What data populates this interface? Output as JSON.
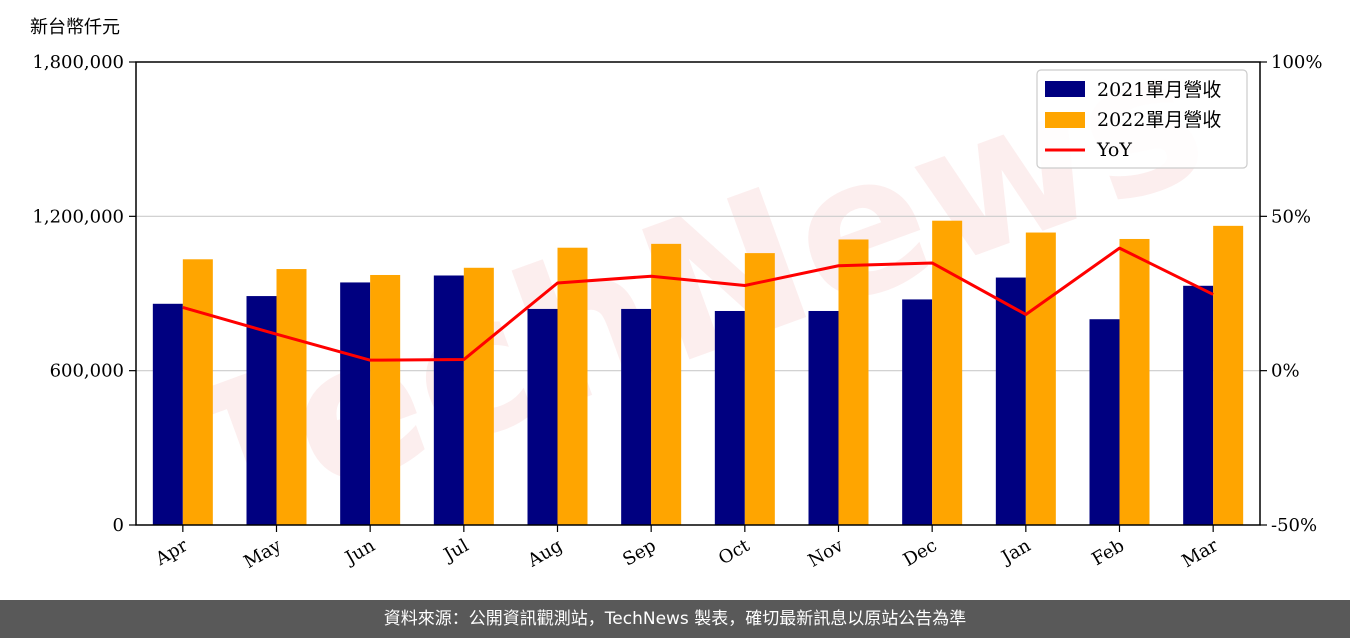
{
  "unit_label": "新台幣仟元",
  "watermark": "TechNews",
  "footer": "資料來源：公開資訊觀測站，TechNews 製表，確切最新訊息以原站公告為準",
  "colors": {
    "2021": "#000080",
    "2022": "#ffa500",
    "yoy": "#ff0000"
  },
  "chart_data": {
    "type": "bar",
    "categories": [
      "Apr",
      "May",
      "Jun",
      "Jul",
      "Aug",
      "Sep",
      "Oct",
      "Nov",
      "Dec",
      "Jan",
      "Feb",
      "Mar"
    ],
    "series": [
      {
        "name": "2021單月營收",
        "type": "bar",
        "axis": "left",
        "values": [
          860000,
          890000,
          943000,
          970000,
          840000,
          840000,
          832000,
          832000,
          877000,
          962000,
          800000,
          930000
        ]
      },
      {
        "name": "2022單月營收",
        "type": "bar",
        "axis": "left",
        "values": [
          1033000,
          995000,
          972000,
          1000000,
          1078000,
          1093000,
          1057000,
          1110000,
          1183000,
          1137000,
          1112000,
          1163000
        ]
      },
      {
        "name": "YoY",
        "type": "line",
        "axis": "right",
        "values": [
          20.5,
          11.8,
          3.4,
          3.6,
          28.4,
          30.6,
          27.6,
          34.0,
          34.9,
          18.2,
          39.7,
          24.7
        ]
      }
    ],
    "y_left": {
      "ylim": [
        0,
        1800000
      ],
      "ticks": [
        0,
        600000,
        1200000,
        1800000
      ],
      "tick_labels": [
        "0",
        "600,000",
        "1,200,000",
        "1,800,000"
      ]
    },
    "y_right": {
      "ylim": [
        -50,
        100
      ],
      "ticks": [
        -50,
        0,
        50,
        100
      ],
      "tick_labels": [
        "-50%",
        "0%",
        "50%",
        "100%"
      ]
    },
    "grid": "horizontal",
    "legend": "top-right"
  }
}
